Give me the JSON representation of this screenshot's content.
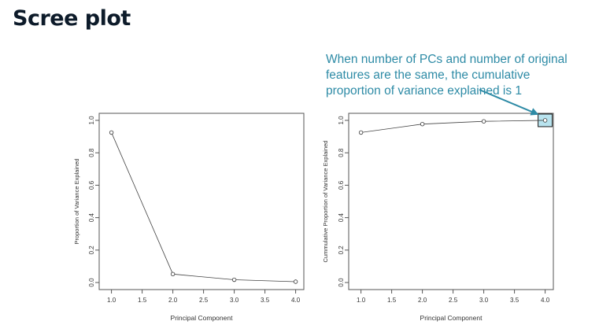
{
  "slide": {
    "title": "Scree plot",
    "callout_lines": [
      "When number of PCs and number of original",
      "features are the same, the cumulative",
      "proportion of variance explained is 1"
    ],
    "accent_color": "#2e8ba6",
    "highlight_fill": "#b8e3ee"
  },
  "chart_data": [
    {
      "type": "line",
      "x": [
        1,
        2,
        3,
        4
      ],
      "y": [
        0.925,
        0.052,
        0.017,
        0.005
      ],
      "title": "",
      "xlabel": "Principal Component",
      "ylabel": "Proportion of Variance Explained",
      "xlim": [
        1,
        4
      ],
      "ylim": [
        0,
        1
      ],
      "xticks": [
        "1.0",
        "1.5",
        "2.0",
        "2.5",
        "3.0",
        "3.5",
        "4.0"
      ],
      "yticks": [
        "0.0",
        "0.2",
        "0.4",
        "0.6",
        "0.8",
        "1.0"
      ],
      "marker": "open-circle",
      "grid": false
    },
    {
      "type": "line",
      "x": [
        1,
        2,
        3,
        4
      ],
      "y": [
        0.925,
        0.977,
        0.994,
        1.0
      ],
      "title": "",
      "xlabel": "Principal Component",
      "ylabel": "Cummulative Proportion of Variance Explained",
      "xlim": [
        1,
        4
      ],
      "ylim": [
        0,
        1
      ],
      "xticks": [
        "1.0",
        "1.5",
        "2.0",
        "2.5",
        "3.0",
        "3.5",
        "4.0"
      ],
      "yticks": [
        "0.0",
        "0.2",
        "0.4",
        "0.6",
        "0.8",
        "1.0"
      ],
      "marker": "open-circle",
      "grid": false,
      "highlight_point_index": 3
    }
  ]
}
